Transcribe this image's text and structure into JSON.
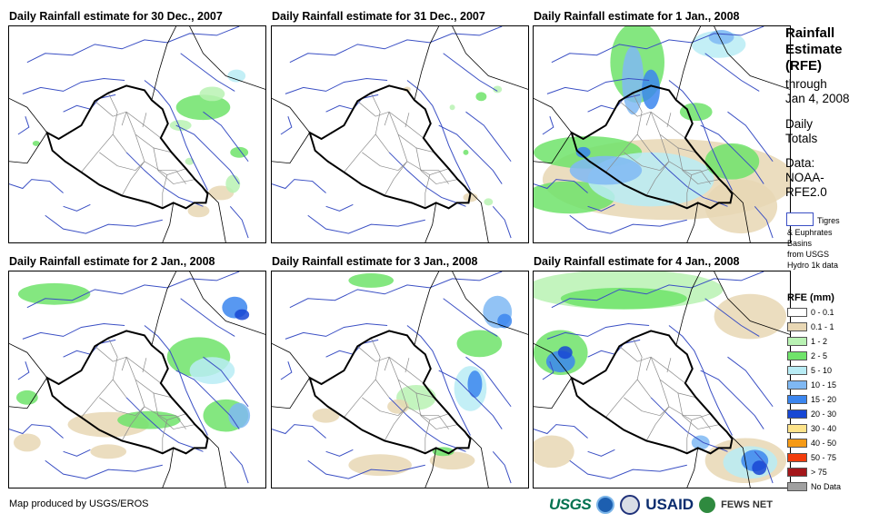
{
  "panels": [
    {
      "title": "Daily Rainfall estimate for 30 Dec., 2007"
    },
    {
      "title": "Daily Rainfall estimate for 31 Dec., 2007"
    },
    {
      "title": "Daily Rainfall estimate for 1 Jan., 2008"
    },
    {
      "title": "Daily Rainfall estimate for 2 Jan., 2008"
    },
    {
      "title": "Daily Rainfall estimate for 3 Jan., 2008"
    },
    {
      "title": "Daily Rainfall estimate for 4 Jan., 2008"
    }
  ],
  "legend": {
    "title_line1": "Rainfall",
    "title_line2": "Estimate",
    "title_line3": "(RFE)",
    "through_line1": "through",
    "through_line2": "Jan 4, 2008",
    "daily_line1": "Daily",
    "daily_line2": "Totals",
    "data_line1": "Data:",
    "data_line2": "NOAA-",
    "data_line3": "RFE2.0",
    "basin_line1": "Tigres",
    "basin_line2": "& Euphrates",
    "basin_line3": "Basins",
    "basin_line4": "from USGS",
    "basin_line5": "Hydro 1k data",
    "rfe_title": "RFE (mm)",
    "classes": [
      {
        "label": "0 - 0.1",
        "color": "#ffffff"
      },
      {
        "label": "0.1 - 1",
        "color": "#e8d7b4"
      },
      {
        "label": "1 - 2",
        "color": "#b9f2b3"
      },
      {
        "label": "2 - 5",
        "color": "#6fe36a"
      },
      {
        "label": "5 - 10",
        "color": "#b8ecf5"
      },
      {
        "label": "10 - 15",
        "color": "#7fb8f3"
      },
      {
        "label": "15 - 20",
        "color": "#3b86ef"
      },
      {
        "label": "20 - 30",
        "color": "#1747d4"
      },
      {
        "label": "30 - 40",
        "color": "#fde38a"
      },
      {
        "label": "40 - 50",
        "color": "#f59a16"
      },
      {
        "label": "50 - 75",
        "color": "#f23c0c"
      },
      {
        "label": "> 75",
        "color": "#a4161a"
      },
      {
        "label": "No Data",
        "color": "#a0a0a0"
      }
    ]
  },
  "footer": {
    "credit": "Map produced by USGS/EROS"
  },
  "logos": {
    "usgs": "USGS",
    "usaid": "USAID",
    "fews": "FEWS NET"
  },
  "colors": {
    "basin": "#3a4fc4",
    "border": "#000000",
    "province": "#8a8a8a"
  }
}
